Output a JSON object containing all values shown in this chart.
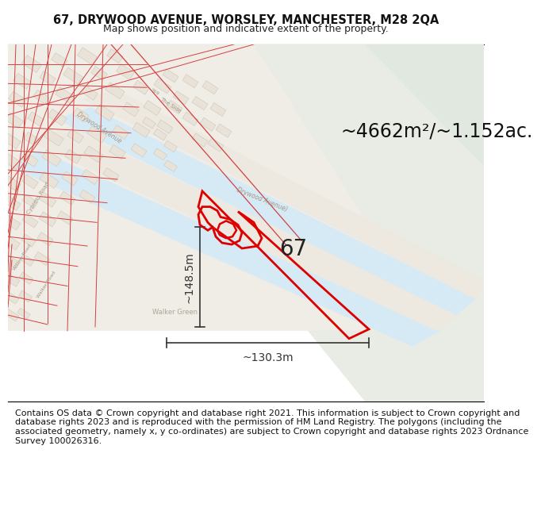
{
  "title_line1": "67, DRYWOOD AVENUE, WORSLEY, MANCHESTER, M28 2QA",
  "title_line2": "Map shows position and indicative extent of the property.",
  "footer_text": "Contains OS data © Crown copyright and database right 2021. This information is subject to Crown copyright and database rights 2023 and is reproduced with the permission of HM Land Registry. The polygons (including the associated geometry, namely x, y co-ordinates) are subject to Crown copyright and database rights 2023 Ordnance Survey 100026316.",
  "area_label": "~4662m²/~1.152ac.",
  "property_number": "67",
  "dim_height": "~148.5m",
  "dim_width": "~130.3m",
  "bg_color": "#f5f3f0",
  "green_color": "#e8ece5",
  "water_color": "#d6eaf5",
  "road_outline_color": "#e8e0d5",
  "building_face_color": "#e8e2d8",
  "building_edge_color": "#d0c8b8",
  "red_line_color": "#d44040",
  "road_label_color": "#aaa898",
  "property_color": "#dd0000",
  "dim_color": "#333333",
  "title_fontsize": 10.5,
  "subtitle_fontsize": 9,
  "footer_fontsize": 8,
  "area_fontsize": 17,
  "number_fontsize": 20,
  "dim_fontsize": 10
}
